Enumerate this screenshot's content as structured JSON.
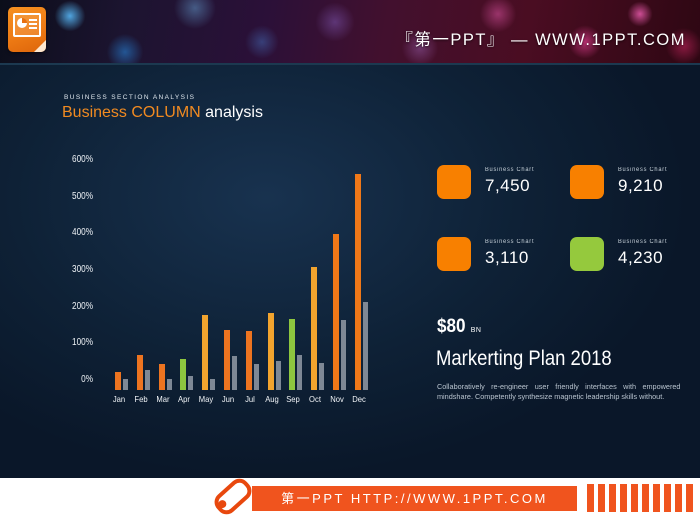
{
  "banner": {
    "logo": "powerpoint-document-icon",
    "brand_text": "『第一PPT』 —  WWW.1PPT.COM"
  },
  "slide": {
    "caption": "BUSINESS SECTION ANALYSIS",
    "title_highlight": "Business COLUMN",
    "title_rest": " analysis",
    "stats": [
      {
        "label": "Business  Chart",
        "value": "7,450",
        "color": "#f88000"
      },
      {
        "label": "Business  Chart",
        "value": "9,210",
        "color": "#f88000"
      },
      {
        "label": "Business  Chart",
        "value": "3,110",
        "color": "#f88000"
      },
      {
        "label": "Business  Chart",
        "value": "4,230",
        "color": "#95c93d"
      }
    ],
    "kpi": {
      "amount": "$80",
      "unit": "BN"
    },
    "heading": "Markerting Plan 2018",
    "body_text": "Collaboratively re-engineer user friendly interfaces with empowered mindshare. Competently synthesize magnetic leadership skills without."
  },
  "chart_data": {
    "type": "bar",
    "title": "Business COLUMN analysis",
    "categories": [
      "Jan",
      "Feb",
      "Mar",
      "Apr",
      "May",
      "Jun",
      "Jul",
      "Aug",
      "Sep",
      "Oct",
      "Nov",
      "Dec"
    ],
    "series": [
      {
        "name": "primary",
        "values": [
          50,
          95,
          70,
          85,
          205,
          165,
          160,
          210,
          195,
          335,
          425,
          590
        ],
        "colors": [
          "#ed7420",
          "#ed7420",
          "#ed7420",
          "#8dc63f",
          "#f2a42e",
          "#ed7420",
          "#ed7420",
          "#f2a42e",
          "#8dc63f",
          "#f2a42e",
          "#f07818",
          "#f07818"
        ]
      },
      {
        "name": "secondary",
        "values": [
          30,
          55,
          30,
          37,
          30,
          93,
          71,
          79,
          95,
          75,
          190,
          240
        ],
        "color": "#7e8895"
      }
    ],
    "xlabel": "",
    "ylabel": "",
    "ylim": [
      0,
      600
    ],
    "ytick_step": 100,
    "ytick_suffix": "%",
    "grid": false,
    "legend": false
  },
  "footer": {
    "icon": "pill-icon",
    "link_text": "第一PPT HTTP://WWW.1PPT.COM",
    "stripes_count": 10
  },
  "colors": {
    "accent_orange": "#ed7420",
    "accent_amber": "#f2a42e",
    "accent_green": "#8dc63f",
    "gray_bar": "#7e8895",
    "title_orange": "#f08a21",
    "slide_bg": "#0e2136",
    "footer_orange": "#f0541e"
  }
}
